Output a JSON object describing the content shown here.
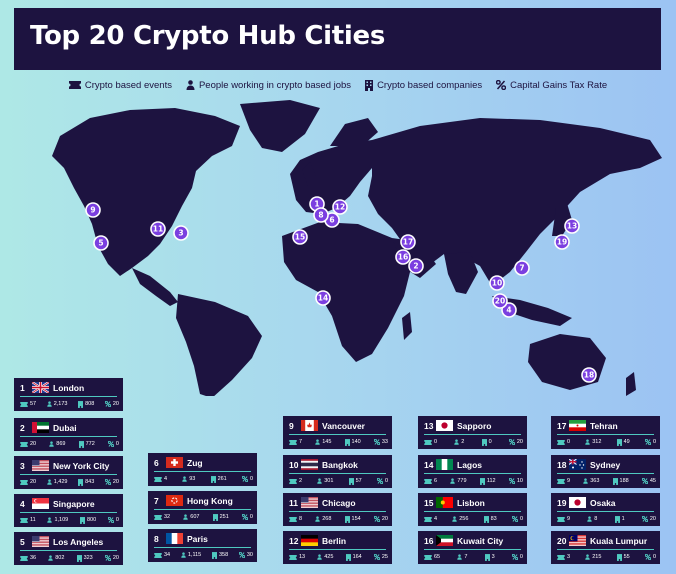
{
  "title": "Top 20 Crypto Hub Cities",
  "legend": [
    {
      "icon": "ticket-icon",
      "label": "Crypto based events"
    },
    {
      "icon": "person-icon",
      "label": "People working in crypto based jobs"
    },
    {
      "icon": "building-icon",
      "label": "Crypto based companies"
    },
    {
      "icon": "percent-icon",
      "label": "Capital Gains Tax Rate"
    }
  ],
  "colors": {
    "panel": "#1d1340",
    "accent": "#4fc9c0",
    "pin": "#7b3fe0",
    "land": "#1d1340"
  },
  "pins": [
    {
      "rank": "1",
      "city": "London"
    },
    {
      "rank": "2",
      "city": "Dubai"
    },
    {
      "rank": "3",
      "city": "New York City"
    },
    {
      "rank": "4",
      "city": "Singapore"
    },
    {
      "rank": "5",
      "city": "Los Angeles"
    },
    {
      "rank": "6",
      "city": "Zug"
    },
    {
      "rank": "7",
      "city": "Hong Kong"
    },
    {
      "rank": "8",
      "city": "Paris"
    },
    {
      "rank": "9",
      "city": "Vancouver"
    },
    {
      "rank": "10",
      "city": "Bangkok"
    },
    {
      "rank": "11",
      "city": "Chicago"
    },
    {
      "rank": "12",
      "city": "Berlin"
    },
    {
      "rank": "13",
      "city": "Sapporo"
    },
    {
      "rank": "14",
      "city": "Lagos"
    },
    {
      "rank": "15",
      "city": "Lisbon"
    },
    {
      "rank": "16",
      "city": "Kuwait City"
    },
    {
      "rank": "17",
      "city": "Tehran"
    },
    {
      "rank": "18",
      "city": "Sydney"
    },
    {
      "rank": "19",
      "city": "Osaka"
    },
    {
      "rank": "20",
      "city": "Kuala Lumpur"
    }
  ],
  "cities": [
    {
      "rank": "1",
      "name": "London",
      "flag": "gb",
      "events": "57",
      "people": "2,173",
      "companies": "808",
      "tax": "20"
    },
    {
      "rank": "2",
      "name": "Dubai",
      "flag": "ae",
      "events": "20",
      "people": "869",
      "companies": "772",
      "tax": "0"
    },
    {
      "rank": "3",
      "name": "New York City",
      "flag": "us",
      "events": "20",
      "people": "1,429",
      "companies": "843",
      "tax": "20"
    },
    {
      "rank": "4",
      "name": "Singapore",
      "flag": "sg",
      "events": "11",
      "people": "1,109",
      "companies": "800",
      "tax": "0"
    },
    {
      "rank": "5",
      "name": "Los Angeles",
      "flag": "us",
      "events": "36",
      "people": "802",
      "companies": "323",
      "tax": "20"
    },
    {
      "rank": "6",
      "name": "Zug",
      "flag": "ch",
      "events": "4",
      "people": "93",
      "companies": "261",
      "tax": "0"
    },
    {
      "rank": "7",
      "name": "Hong Kong",
      "flag": "hk",
      "events": "32",
      "people": "607",
      "companies": "251",
      "tax": "0"
    },
    {
      "rank": "8",
      "name": "Paris",
      "flag": "fr",
      "events": "34",
      "people": "1,115",
      "companies": "358",
      "tax": "30"
    },
    {
      "rank": "9",
      "name": "Vancouver",
      "flag": "ca",
      "events": "7",
      "people": "145",
      "companies": "140",
      "tax": "33"
    },
    {
      "rank": "10",
      "name": "Bangkok",
      "flag": "th",
      "events": "2",
      "people": "301",
      "companies": "57",
      "tax": "0"
    },
    {
      "rank": "11",
      "name": "Chicago",
      "flag": "us",
      "events": "8",
      "people": "268",
      "companies": "154",
      "tax": "20"
    },
    {
      "rank": "12",
      "name": "Berlin",
      "flag": "de",
      "events": "13",
      "people": "425",
      "companies": "164",
      "tax": "25"
    },
    {
      "rank": "13",
      "name": "Sapporo",
      "flag": "jp",
      "events": "0",
      "people": "2",
      "companies": "0",
      "tax": "20"
    },
    {
      "rank": "14",
      "name": "Lagos",
      "flag": "ng",
      "events": "6",
      "people": "779",
      "companies": "112",
      "tax": "10"
    },
    {
      "rank": "15",
      "name": "Lisbon",
      "flag": "pt",
      "events": "4",
      "people": "256",
      "companies": "83",
      "tax": "0"
    },
    {
      "rank": "16",
      "name": "Kuwait City",
      "flag": "kw",
      "events": "65",
      "people": "7",
      "companies": "3",
      "tax": "0"
    },
    {
      "rank": "17",
      "name": "Tehran",
      "flag": "ir",
      "events": "0",
      "people": "312",
      "companies": "49",
      "tax": "0"
    },
    {
      "rank": "18",
      "name": "Sydney",
      "flag": "au",
      "events": "9",
      "people": "363",
      "companies": "188",
      "tax": "45"
    },
    {
      "rank": "19",
      "name": "Osaka",
      "flag": "jp",
      "events": "9",
      "people": "8",
      "companies": "1",
      "tax": "20"
    },
    {
      "rank": "20",
      "name": "Kuala Lumpur",
      "flag": "my",
      "events": "3",
      "people": "215",
      "companies": "55",
      "tax": "0"
    }
  ]
}
